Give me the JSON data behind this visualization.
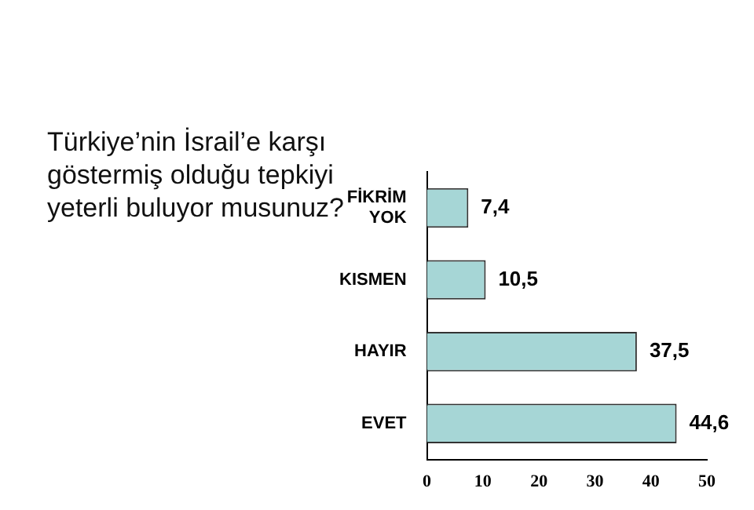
{
  "chart_data": {
    "type": "bar",
    "orientation": "horizontal",
    "title": "Türkiye’nin İsrail’e karşı göstermiş olduğu tepkiyi yeterli buluyor musunuz?",
    "categories": [
      "FİKRİM YOK",
      "KISMEN",
      "HAYIR",
      "EVET"
    ],
    "values": [
      7.4,
      10.5,
      37.5,
      44.6
    ],
    "value_labels": [
      "7,4",
      "10,5",
      "37,5",
      "44,6"
    ],
    "color": "#a6d6d6",
    "xlim": [
      0,
      50
    ],
    "xticks": [
      0,
      10,
      20,
      30,
      40,
      50
    ],
    "grid": false,
    "legend": false
  }
}
